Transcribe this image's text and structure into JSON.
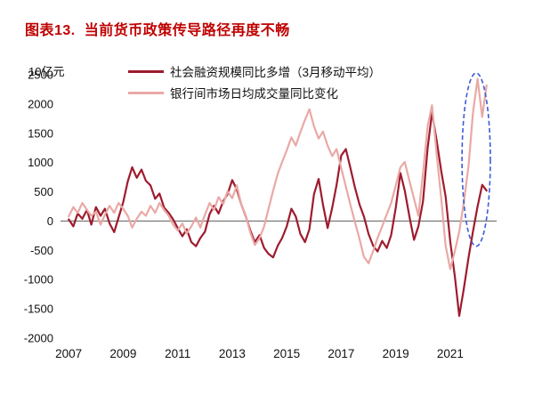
{
  "header": {
    "figure_label": "图表13.",
    "title": "当前货币政策传导路径再度不畅"
  },
  "colors": {
    "title_red": "#BF0000",
    "series_dark_red": "#9E1B2E",
    "series_pink": "#E9A9A6",
    "annotation_blue": "#3C5BD7",
    "zero_line_gray": "#808080"
  },
  "chart_data": {
    "type": "line",
    "unit_label": "10亿元",
    "xlim": [
      2006.7,
      2022.7
    ],
    "ylim": [
      -2000,
      2500
    ],
    "x_ticks": [
      2007,
      2009,
      2011,
      2013,
      2015,
      2017,
      2019,
      2021
    ],
    "y_ticks": [
      2500,
      2000,
      1500,
      1000,
      500,
      0,
      -500,
      -1000,
      -1500,
      -2000
    ],
    "grid": false,
    "legend_position": "top-center",
    "series": [
      {
        "name": "社会融资规模同比多增（3月移动平均）",
        "color": "#9E1B2E",
        "width": 2.2,
        "points": [
          [
            2007.0,
            30
          ],
          [
            2007.17,
            -90
          ],
          [
            2007.33,
            130
          ],
          [
            2007.5,
            40
          ],
          [
            2007.67,
            190
          ],
          [
            2007.83,
            -60
          ],
          [
            2008.0,
            240
          ],
          [
            2008.17,
            90
          ],
          [
            2008.33,
            210
          ],
          [
            2008.5,
            -40
          ],
          [
            2008.67,
            -190
          ],
          [
            2008.83,
            60
          ],
          [
            2009.0,
            320
          ],
          [
            2009.17,
            680
          ],
          [
            2009.33,
            920
          ],
          [
            2009.5,
            740
          ],
          [
            2009.67,
            880
          ],
          [
            2009.83,
            690
          ],
          [
            2010.0,
            610
          ],
          [
            2010.17,
            380
          ],
          [
            2010.33,
            470
          ],
          [
            2010.5,
            230
          ],
          [
            2010.67,
            140
          ],
          [
            2010.83,
            30
          ],
          [
            2011.0,
            -120
          ],
          [
            2011.17,
            -260
          ],
          [
            2011.33,
            -140
          ],
          [
            2011.5,
            -360
          ],
          [
            2011.67,
            -430
          ],
          [
            2011.83,
            -290
          ],
          [
            2012.0,
            -180
          ],
          [
            2012.17,
            120
          ],
          [
            2012.33,
            260
          ],
          [
            2012.5,
            130
          ],
          [
            2012.67,
            340
          ],
          [
            2012.83,
            460
          ],
          [
            2013.0,
            700
          ],
          [
            2013.17,
            540
          ],
          [
            2013.33,
            290
          ],
          [
            2013.5,
            80
          ],
          [
            2013.67,
            -170
          ],
          [
            2013.83,
            -360
          ],
          [
            2014.0,
            -240
          ],
          [
            2014.17,
            -460
          ],
          [
            2014.33,
            -560
          ],
          [
            2014.5,
            -620
          ],
          [
            2014.67,
            -420
          ],
          [
            2014.83,
            -290
          ],
          [
            2015.0,
            -90
          ],
          [
            2015.17,
            210
          ],
          [
            2015.33,
            80
          ],
          [
            2015.5,
            -220
          ],
          [
            2015.67,
            -360
          ],
          [
            2015.83,
            -140
          ],
          [
            2016.0,
            460
          ],
          [
            2016.17,
            720
          ],
          [
            2016.33,
            280
          ],
          [
            2016.5,
            -120
          ],
          [
            2016.67,
            230
          ],
          [
            2016.83,
            620
          ],
          [
            2017.0,
            1120
          ],
          [
            2017.17,
            1230
          ],
          [
            2017.33,
            920
          ],
          [
            2017.5,
            580
          ],
          [
            2017.67,
            280
          ],
          [
            2017.83,
            80
          ],
          [
            2018.0,
            -220
          ],
          [
            2018.17,
            -420
          ],
          [
            2018.33,
            -520
          ],
          [
            2018.5,
            -340
          ],
          [
            2018.67,
            -460
          ],
          [
            2018.83,
            -240
          ],
          [
            2019.0,
            230
          ],
          [
            2019.17,
            820
          ],
          [
            2019.33,
            520
          ],
          [
            2019.5,
            80
          ],
          [
            2019.67,
            -320
          ],
          [
            2019.83,
            -90
          ],
          [
            2020.0,
            340
          ],
          [
            2020.17,
            1250
          ],
          [
            2020.33,
            1850
          ],
          [
            2020.5,
            1380
          ],
          [
            2020.67,
            850
          ],
          [
            2020.83,
            420
          ],
          [
            2021.0,
            -350
          ],
          [
            2021.17,
            -950
          ],
          [
            2021.33,
            -1620
          ],
          [
            2021.5,
            -1150
          ],
          [
            2021.67,
            -620
          ],
          [
            2021.83,
            -180
          ],
          [
            2022.0,
            250
          ],
          [
            2022.17,
            620
          ],
          [
            2022.33,
            520
          ]
        ]
      },
      {
        "name": "银行间市场日均成交量同比变化",
        "color": "#E9A9A6",
        "width": 2.2,
        "points": [
          [
            2007.0,
            80
          ],
          [
            2007.17,
            240
          ],
          [
            2007.33,
            140
          ],
          [
            2007.5,
            310
          ],
          [
            2007.67,
            190
          ],
          [
            2007.83,
            90
          ],
          [
            2008.0,
            160
          ],
          [
            2008.17,
            -60
          ],
          [
            2008.33,
            110
          ],
          [
            2008.5,
            260
          ],
          [
            2008.67,
            140
          ],
          [
            2008.83,
            310
          ],
          [
            2009.0,
            210
          ],
          [
            2009.17,
            90
          ],
          [
            2009.33,
            -110
          ],
          [
            2009.5,
            40
          ],
          [
            2009.67,
            160
          ],
          [
            2009.83,
            90
          ],
          [
            2010.0,
            260
          ],
          [
            2010.17,
            140
          ],
          [
            2010.33,
            310
          ],
          [
            2010.5,
            190
          ],
          [
            2010.67,
            90
          ],
          [
            2010.83,
            -60
          ],
          [
            2011.0,
            -160
          ],
          [
            2011.17,
            -40
          ],
          [
            2011.33,
            -210
          ],
          [
            2011.5,
            -90
          ],
          [
            2011.67,
            60
          ],
          [
            2011.83,
            -110
          ],
          [
            2012.0,
            110
          ],
          [
            2012.17,
            310
          ],
          [
            2012.33,
            190
          ],
          [
            2012.5,
            410
          ],
          [
            2012.67,
            290
          ],
          [
            2012.83,
            510
          ],
          [
            2013.0,
            390
          ],
          [
            2013.17,
            610
          ],
          [
            2013.33,
            290
          ],
          [
            2013.5,
            90
          ],
          [
            2013.67,
            -210
          ],
          [
            2013.83,
            -410
          ],
          [
            2014.0,
            -290
          ],
          [
            2014.17,
            -90
          ],
          [
            2014.33,
            210
          ],
          [
            2014.5,
            520
          ],
          [
            2014.67,
            810
          ],
          [
            2014.83,
            1010
          ],
          [
            2015.0,
            1210
          ],
          [
            2015.17,
            1430
          ],
          [
            2015.33,
            1290
          ],
          [
            2015.5,
            1520
          ],
          [
            2015.67,
            1730
          ],
          [
            2015.83,
            1910
          ],
          [
            2016.0,
            1620
          ],
          [
            2016.17,
            1410
          ],
          [
            2016.33,
            1530
          ],
          [
            2016.5,
            1290
          ],
          [
            2016.67,
            1110
          ],
          [
            2016.83,
            1230
          ],
          [
            2017.0,
            910
          ],
          [
            2017.17,
            590
          ],
          [
            2017.33,
            290
          ],
          [
            2017.5,
            -10
          ],
          [
            2017.67,
            -310
          ],
          [
            2017.83,
            -610
          ],
          [
            2018.0,
            -720
          ],
          [
            2018.17,
            -510
          ],
          [
            2018.33,
            -290
          ],
          [
            2018.5,
            -90
          ],
          [
            2018.67,
            120
          ],
          [
            2018.83,
            310
          ],
          [
            2019.0,
            610
          ],
          [
            2019.17,
            920
          ],
          [
            2019.33,
            1010
          ],
          [
            2019.5,
            690
          ],
          [
            2019.67,
            380
          ],
          [
            2019.83,
            90
          ],
          [
            2020.0,
            820
          ],
          [
            2020.17,
            1620
          ],
          [
            2020.33,
            1980
          ],
          [
            2020.5,
            1150
          ],
          [
            2020.67,
            380
          ],
          [
            2020.83,
            -420
          ],
          [
            2021.0,
            -820
          ],
          [
            2021.17,
            -510
          ],
          [
            2021.33,
            -180
          ],
          [
            2021.5,
            320
          ],
          [
            2021.67,
            950
          ],
          [
            2021.83,
            1850
          ],
          [
            2022.0,
            2430
          ],
          [
            2022.17,
            1780
          ],
          [
            2022.33,
            2320
          ]
        ]
      }
    ],
    "annotation": {
      "type": "dashed-ellipse",
      "cx": 2021.95,
      "cy": 1050,
      "rx": 0.52,
      "ry": 1480,
      "color": "#3C5BD7"
    }
  }
}
